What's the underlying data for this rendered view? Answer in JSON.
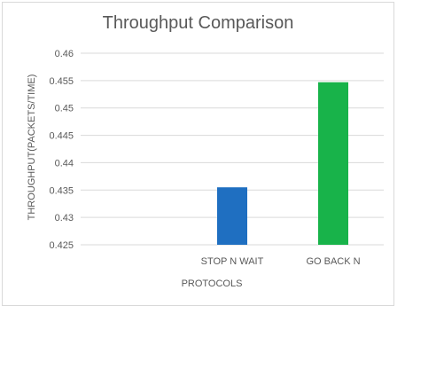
{
  "chart_data": {
    "type": "bar",
    "title": "Throughput Comparison",
    "xlabel": "PROTOCOLS",
    "ylabel": "THROUGHPUT(PACKETS/TIME)",
    "categories": [
      "",
      "STOP N WAIT",
      "GO BACK N"
    ],
    "values": [
      null,
      0.4355,
      0.4547
    ],
    "colors": [
      null,
      "#1f6fc1",
      "#18b34a"
    ],
    "ylim": [
      0.425,
      0.46
    ],
    "yticks": [
      "0.425",
      "0.43",
      "0.435",
      "0.44",
      "0.445",
      "0.45",
      "0.455",
      "0.46"
    ],
    "grid": true,
    "legend": "none"
  }
}
